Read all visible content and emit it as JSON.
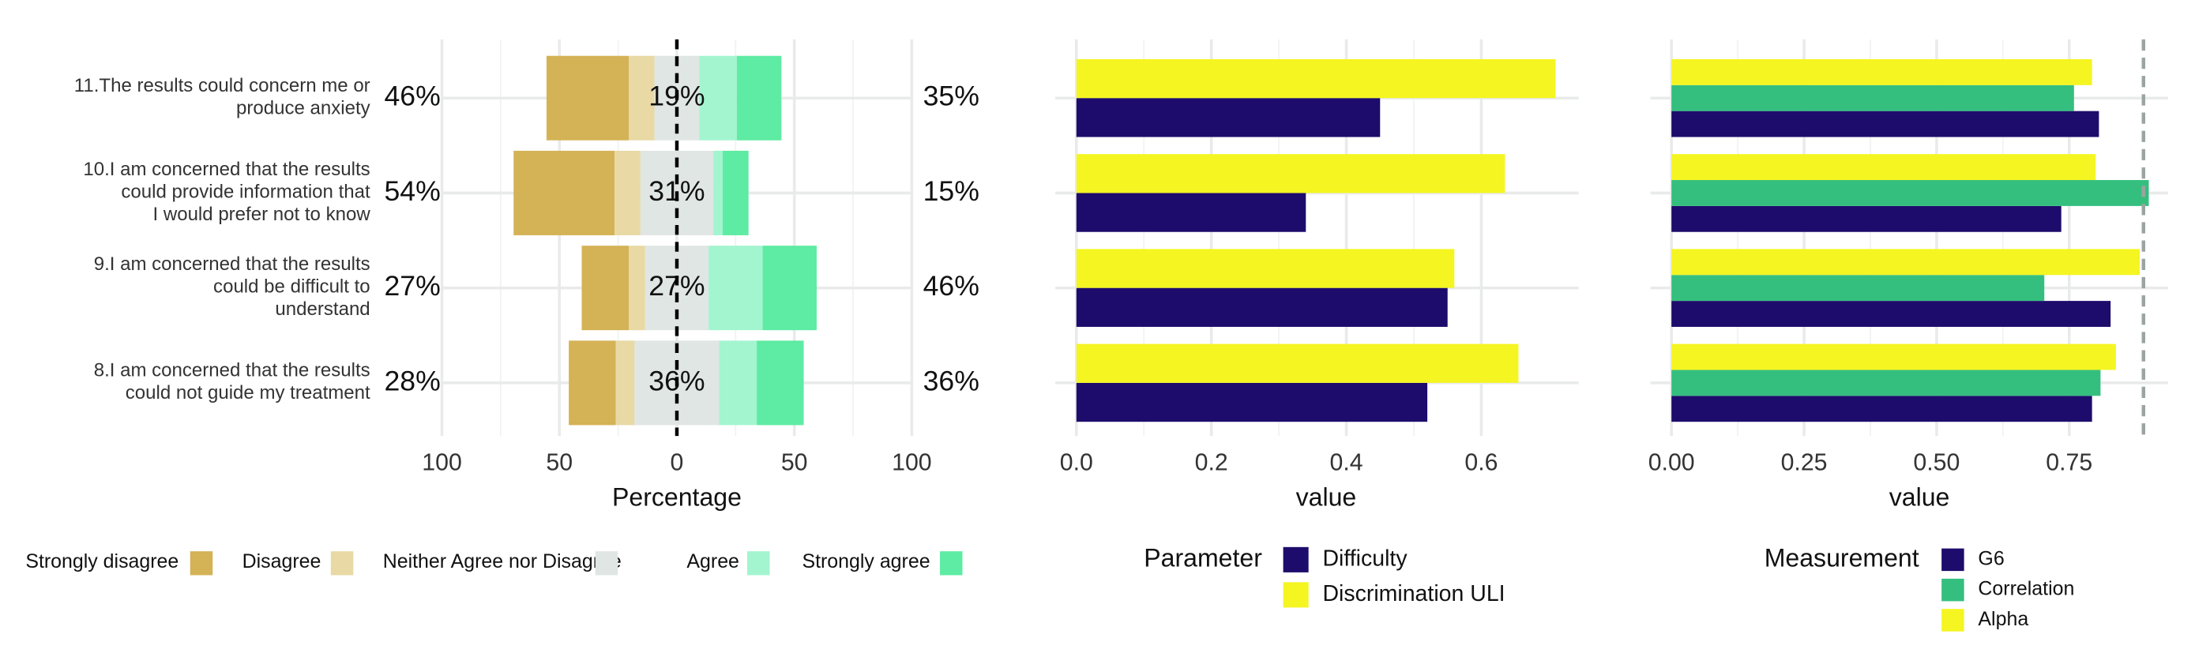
{
  "chart_data": [
    {
      "type": "diverging_bar",
      "categories": [
        "11.The results could concern me or\nproduce anxiety",
        "10.I am concerned that the results\ncould provide information that\nI would prefer not to know",
        "9.I am concerned that the results\ncould be difficult to\nunderstand",
        "8.I am concerned that the results\ncould not guide my treatment"
      ],
      "series": [
        {
          "name": "Strongly disagree",
          "color": "#d4b256",
          "values": [
            35,
            43,
            20,
            20
          ]
        },
        {
          "name": "Disagree",
          "color": "#e8d9a5",
          "values": [
            11,
            11,
            7,
            8
          ]
        },
        {
          "name": "Neither Agree nor Disagree",
          "color": "#e0e6e3",
          "values": [
            19,
            31,
            27,
            36
          ]
        },
        {
          "name": "Agree",
          "color": "#a3f5cf",
          "values": [
            16,
            4,
            23,
            16
          ]
        },
        {
          "name": "Strongly agree",
          "color": "#5eeba3",
          "values": [
            19,
            11,
            23,
            20
          ]
        }
      ],
      "left_labels": [
        "46%",
        "54%",
        "27%",
        "28%"
      ],
      "center_labels": [
        "19%",
        "31%",
        "27%",
        "36%"
      ],
      "right_labels": [
        "35%",
        "15%",
        "46%",
        "36%"
      ],
      "xlim": [
        -100,
        100
      ],
      "xticks": [
        {
          "value": -100,
          "label": "100"
        },
        {
          "value": -50,
          "label": "50"
        },
        0,
        50,
        100
      ],
      "x_label": "Percentage",
      "grid": true
    },
    {
      "type": "hbar",
      "categories": [
        "11",
        "10",
        "9",
        "8"
      ],
      "series": [
        {
          "name": "Difficulty",
          "color": "#1e0c6c",
          "values": [
            0.45,
            0.34,
            0.55,
            0.52
          ]
        },
        {
          "name": "Discrimination ULI",
          "color": "#f5f522",
          "values": [
            0.71,
            0.635,
            0.56,
            0.655
          ]
        }
      ],
      "xlim": [
        0,
        0.74
      ],
      "xticks": [
        {
          "value": 0,
          "label": "0.0"
        },
        0.2,
        0.4,
        0.6
      ],
      "x_label": "value",
      "legend_title": "Parameter",
      "grid": true
    },
    {
      "type": "hbar",
      "categories": [
        "11",
        "10",
        "9",
        "8"
      ],
      "series": [
        {
          "name": "G6",
          "color": "#1e0c6c",
          "values": [
            0.806,
            0.735,
            0.828,
            0.793
          ]
        },
        {
          "name": "Correlation",
          "color": "#35bf7f",
          "values": [
            0.759,
            0.9,
            0.703,
            0.809
          ]
        },
        {
          "name": "Alpha",
          "color": "#f5f522",
          "values": [
            0.793,
            0.8,
            0.883,
            0.838
          ]
        }
      ],
      "xlim": [
        0,
        0.935
      ],
      "xticks": [
        {
          "value": 0,
          "label": "0.00"
        },
        0.25,
        {
          "value": 0.5,
          "label": "0.50"
        },
        0.75
      ],
      "reference_line": 0.89,
      "reference_color": "#9aa5a0",
      "x_label": "value",
      "legend_title": "Measurement",
      "grid": true
    }
  ]
}
